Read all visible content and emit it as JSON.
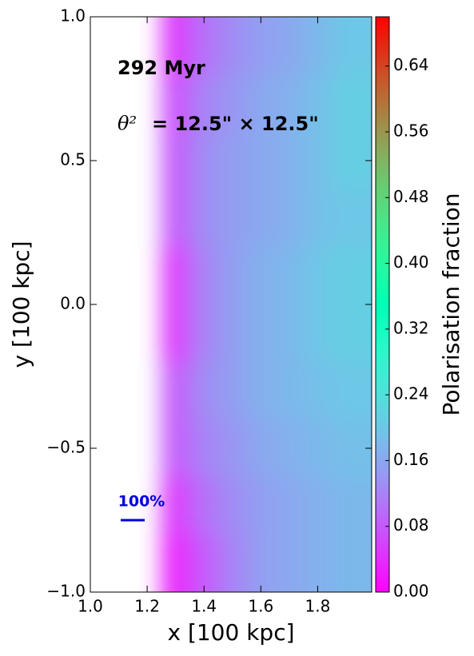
{
  "chart_data": {
    "type": "heatmap",
    "xlabel": "x [100 kpc]",
    "ylabel": "y [100 kpc]",
    "colorbar_label": "Polarisation fraction",
    "annotations": {
      "time": "292 Myr",
      "beam_symbol": "θ²",
      "beam_size": "= 12.5\" × 12.5\"",
      "scale_bar_label": "100%"
    },
    "colormap": "rainbow",
    "xlim": [
      1.0,
      1.99
    ],
    "ylim": [
      -1.0,
      1.0
    ],
    "clim": [
      0,
      0.7
    ],
    "xticks": [
      {
        "value": 1.0,
        "label": "1.0"
      },
      {
        "value": 1.2,
        "label": "1.2"
      },
      {
        "value": 1.4,
        "label": "1.4"
      },
      {
        "value": 1.6,
        "label": "1.6"
      },
      {
        "value": 1.8,
        "label": "1.8"
      }
    ],
    "yticks": [
      {
        "value": -1.0,
        "label": "−1.0"
      },
      {
        "value": -0.5,
        "label": "−0.5"
      },
      {
        "value": 0.0,
        "label": "0.0"
      },
      {
        "value": 0.5,
        "label": "0.5"
      },
      {
        "value": 1.0,
        "label": "1.0"
      }
    ],
    "cticks": [
      {
        "value": 0,
        "label": "0.00"
      },
      {
        "value": 0.08,
        "label": "0.08"
      },
      {
        "value": 0.16,
        "label": "0.16"
      },
      {
        "value": 0.24,
        "label": "0.24"
      },
      {
        "value": 0.32,
        "label": "0.32"
      },
      {
        "value": 0.4,
        "label": "0.40"
      },
      {
        "value": 0.48,
        "label": "0.48"
      },
      {
        "value": 0.56,
        "label": "0.56"
      },
      {
        "value": 0.64,
        "label": "0.64"
      }
    ],
    "x_edges": [
      1.25,
      1.35,
      1.45,
      1.55,
      1.65,
      1.75,
      1.85,
      1.99
    ],
    "y_edges": [
      -1.0,
      -0.8,
      -0.6,
      -0.4,
      -0.2,
      0.0,
      0.2,
      0.4,
      0.6,
      0.8,
      1.0
    ],
    "values": [
      [
        0.03,
        0.08,
        0.12,
        0.15,
        0.16,
        0.17,
        0.18
      ],
      [
        0.05,
        0.1,
        0.13,
        0.15,
        0.16,
        0.17,
        0.18
      ],
      [
        0.08,
        0.12,
        0.14,
        0.16,
        0.17,
        0.18,
        0.19
      ],
      [
        0.08,
        0.13,
        0.15,
        0.17,
        0.18,
        0.19,
        0.2
      ],
      [
        0.05,
        0.12,
        0.15,
        0.17,
        0.18,
        0.2,
        0.21
      ],
      [
        0.05,
        0.12,
        0.15,
        0.17,
        0.18,
        0.2,
        0.21
      ],
      [
        0.08,
        0.13,
        0.15,
        0.16,
        0.17,
        0.19,
        0.2
      ],
      [
        0.08,
        0.13,
        0.15,
        0.16,
        0.17,
        0.19,
        0.21
      ],
      [
        0.07,
        0.12,
        0.14,
        0.16,
        0.17,
        0.19,
        0.21
      ],
      [
        0.05,
        0.1,
        0.13,
        0.15,
        0.16,
        0.18,
        0.2
      ]
    ]
  }
}
